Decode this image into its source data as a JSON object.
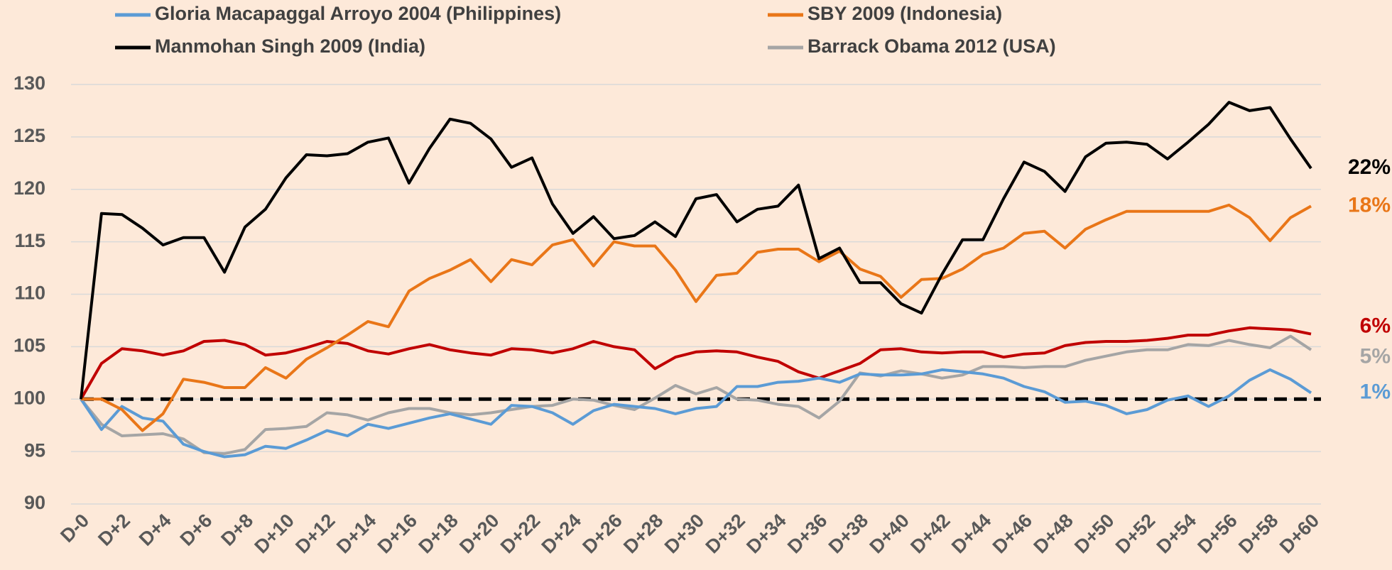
{
  "chart_data": {
    "type": "line",
    "categories": [
      "D-0",
      null,
      "D+2",
      null,
      "D+4",
      null,
      "D+6",
      null,
      "D+8",
      null,
      "D+10",
      null,
      "D+12",
      null,
      "D+14",
      null,
      "D+16",
      null,
      "D+18",
      null,
      "D+20",
      null,
      "D+22",
      null,
      "D+24",
      null,
      "D+26",
      null,
      "D+28",
      null,
      "D+30",
      null,
      "D+32",
      null,
      "D+34",
      null,
      "D+36",
      null,
      "D+38",
      null,
      "D+40",
      null,
      "D+42",
      null,
      "D+44",
      null,
      "D+46",
      null,
      "D+48",
      null,
      "D+50",
      null,
      "D+52",
      null,
      "D+54",
      null,
      "D+56",
      null,
      "D+58",
      null,
      "D+60"
    ],
    "ylim": [
      90,
      130
    ],
    "yticks": [
      90,
      95,
      100,
      105,
      110,
      115,
      120,
      125,
      130
    ],
    "grid": true,
    "reference_line": 100,
    "series": [
      {
        "name": "Gloria Macapaggal Arroyo 2004 (Philippines)",
        "color": "#5b9bd5",
        "end_label": "1%",
        "values": [
          100,
          97.1,
          99.3,
          98.2,
          97.9,
          95.7,
          95.0,
          94.5,
          94.7,
          95.5,
          95.3,
          96.1,
          97.0,
          96.5,
          97.6,
          97.2,
          97.7,
          98.2,
          98.6,
          98.1,
          97.6,
          99.4,
          99.3,
          98.7,
          97.6,
          98.9,
          99.5,
          99.3,
          99.1,
          98.6,
          99.1,
          99.3,
          101.2,
          101.2,
          101.6,
          101.7,
          102.0,
          101.6,
          102.4,
          102.3,
          102.3,
          102.4,
          102.8,
          102.6,
          102.4,
          102.0,
          101.2,
          100.7,
          99.7,
          99.8,
          99.4,
          98.6,
          99.0,
          99.9,
          100.3,
          99.3,
          100.3,
          101.8,
          102.8,
          101.9,
          100.6
        ]
      },
      {
        "name": "SBY 2009 (Indonesia)",
        "color": "#e97618",
        "end_label": "18%",
        "values": [
          100,
          100,
          99,
          97,
          98.6,
          101.9,
          101.6,
          101.1,
          101.1,
          103,
          102,
          103.8,
          104.9,
          106.1,
          107.4,
          106.9,
          110.3,
          111.5,
          112.3,
          113.3,
          111.2,
          113.3,
          112.8,
          114.7,
          115.2,
          112.7,
          115.0,
          114.6,
          114.6,
          112.3,
          109.3,
          111.8,
          112.0,
          114.0,
          114.3,
          114.3,
          113.1,
          114.1,
          112.4,
          111.7,
          109.7,
          111.4,
          111.5,
          112.4,
          113.8,
          114.4,
          115.8,
          116.0,
          114.4,
          116.2,
          117.1,
          117.9,
          117.9,
          117.9,
          117.9,
          117.9,
          118.5,
          117.3,
          115.1,
          117.3,
          118.4
        ]
      },
      {
        "name": "Manmohan Singh 2009 (India)",
        "color": "#000000",
        "end_label": "22%",
        "values": [
          100,
          117.7,
          117.6,
          116.3,
          114.7,
          115.4,
          115.4,
          112.1,
          116.4,
          118.1,
          121.1,
          123.3,
          123.2,
          123.4,
          124.5,
          124.9,
          120.6,
          123.9,
          126.7,
          126.3,
          124.8,
          122.1,
          123.0,
          118.6,
          115.8,
          117.4,
          115.3,
          115.6,
          116.9,
          115.5,
          119.1,
          119.5,
          116.9,
          118.1,
          118.4,
          120.4,
          113.4,
          114.4,
          111.1,
          111.1,
          109.1,
          108.2,
          111.9,
          115.2,
          115.2,
          119.1,
          122.6,
          121.7,
          119.8,
          123.1,
          124.4,
          124.5,
          124.3,
          122.9,
          124.5,
          126.2,
          128.3,
          127.5,
          127.8,
          124.8,
          122.0
        ]
      },
      {
        "name": "Barrack Obama 2012 (USA)",
        "color": "#a5a5a5",
        "end_label": "5%",
        "values": [
          100,
          97.6,
          96.5,
          96.6,
          96.7,
          96.2,
          94.9,
          94.8,
          95.2,
          97.1,
          97.2,
          97.4,
          98.7,
          98.5,
          98.0,
          98.7,
          99.1,
          99.1,
          98.7,
          98.5,
          98.7,
          99.0,
          99.3,
          99.4,
          100.0,
          99.9,
          99.4,
          99.0,
          100.1,
          101.3,
          100.5,
          101.1,
          100.0,
          99.9,
          99.5,
          99.3,
          98.2,
          99.8,
          102.5,
          102.2,
          102.7,
          102.4,
          102.0,
          102.3,
          103.1,
          103.1,
          103.0,
          103.1,
          103.1,
          103.7,
          104.1,
          104.5,
          104.7,
          104.7,
          105.2,
          105.1,
          105.6,
          105.2,
          104.9,
          106.0,
          104.7
        ]
      },
      {
        "color": "#c00000",
        "end_label": "6%",
        "values": [
          100,
          103.4,
          104.8,
          104.6,
          104.2,
          104.6,
          105.5,
          105.6,
          105.2,
          104.2,
          104.4,
          104.9,
          105.5,
          105.3,
          104.6,
          104.3,
          104.8,
          105.2,
          104.7,
          104.4,
          104.2,
          104.8,
          104.7,
          104.4,
          104.8,
          105.5,
          105.0,
          104.7,
          102.9,
          104.0,
          104.5,
          104.6,
          104.5,
          104.0,
          103.6,
          102.6,
          102.0,
          102.7,
          103.4,
          104.7,
          104.8,
          104.5,
          104.4,
          104.5,
          104.5,
          104.0,
          104.3,
          104.4,
          105.1,
          105.4,
          105.5,
          105.5,
          105.6,
          105.8,
          106.1,
          106.1,
          106.5,
          106.8,
          106.7,
          106.6,
          106.2
        ]
      }
    ]
  }
}
